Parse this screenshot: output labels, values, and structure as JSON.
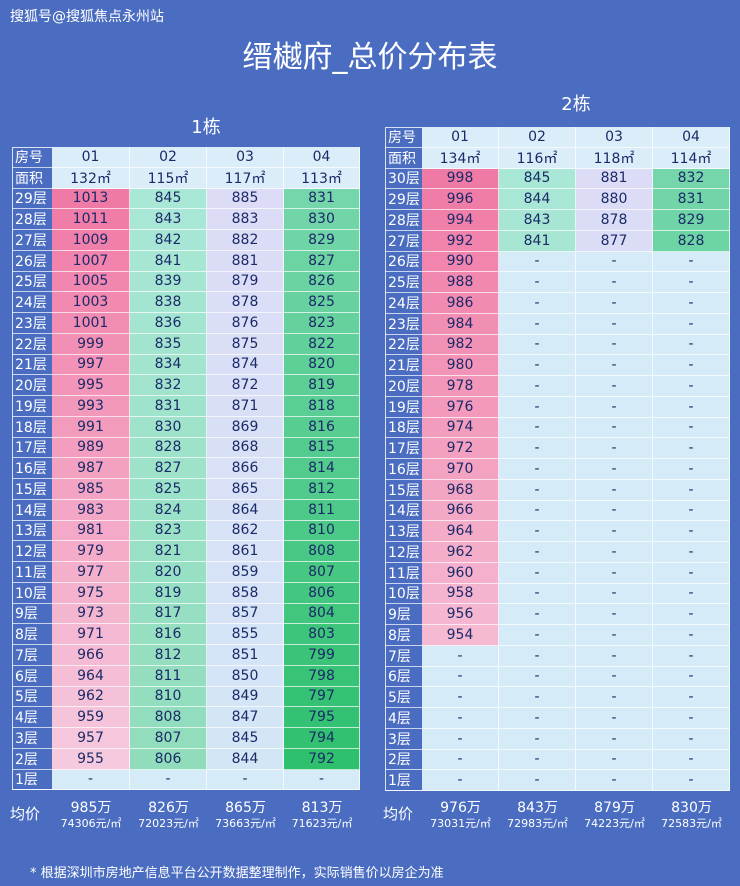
{
  "watermark": "搜狐号@搜狐焦点永州站",
  "title": "缙樾府_总价分布表",
  "footnote": "* 根据深圳市房地产信息平台公开数据整理制作，实际销售价以房企为准",
  "tables": [
    {
      "title": "1栋",
      "unit_label": "房号",
      "area_label": "面积",
      "avg_label": "均价",
      "units": [
        "01",
        "02",
        "03",
        "04"
      ],
      "areas": [
        "132㎡",
        "115㎡",
        "117㎡",
        "113㎡"
      ],
      "rows": [
        {
          "floor": "29层",
          "values": [
            1013,
            845,
            885,
            831
          ]
        },
        {
          "floor": "28层",
          "values": [
            1011,
            843,
            883,
            830
          ]
        },
        {
          "floor": "27层",
          "values": [
            1009,
            842,
            882,
            829
          ]
        },
        {
          "floor": "26层",
          "values": [
            1007,
            841,
            881,
            827
          ]
        },
        {
          "floor": "25层",
          "values": [
            1005,
            839,
            879,
            826
          ]
        },
        {
          "floor": "24层",
          "values": [
            1003,
            838,
            878,
            825
          ]
        },
        {
          "floor": "23层",
          "values": [
            1001,
            836,
            876,
            823
          ]
        },
        {
          "floor": "22层",
          "values": [
            999,
            835,
            875,
            822
          ]
        },
        {
          "floor": "21层",
          "values": [
            997,
            834,
            874,
            820
          ]
        },
        {
          "floor": "20层",
          "values": [
            995,
            832,
            872,
            819
          ]
        },
        {
          "floor": "19层",
          "values": [
            993,
            831,
            871,
            818
          ]
        },
        {
          "floor": "18层",
          "values": [
            991,
            830,
            869,
            816
          ]
        },
        {
          "floor": "17层",
          "values": [
            989,
            828,
            868,
            815
          ]
        },
        {
          "floor": "16层",
          "values": [
            987,
            827,
            866,
            814
          ]
        },
        {
          "floor": "15层",
          "values": [
            985,
            825,
            865,
            812
          ]
        },
        {
          "floor": "14层",
          "values": [
            983,
            824,
            864,
            811
          ]
        },
        {
          "floor": "13层",
          "values": [
            981,
            823,
            862,
            810
          ]
        },
        {
          "floor": "12层",
          "values": [
            979,
            821,
            861,
            808
          ]
        },
        {
          "floor": "11层",
          "values": [
            977,
            820,
            859,
            807
          ]
        },
        {
          "floor": "10层",
          "values": [
            975,
            819,
            858,
            806
          ]
        },
        {
          "floor": "9层",
          "values": [
            973,
            817,
            857,
            804
          ]
        },
        {
          "floor": "8层",
          "values": [
            971,
            816,
            855,
            803
          ]
        },
        {
          "floor": "7层",
          "values": [
            966,
            812,
            851,
            799
          ]
        },
        {
          "floor": "6层",
          "values": [
            964,
            811,
            850,
            798
          ]
        },
        {
          "floor": "5层",
          "values": [
            962,
            810,
            849,
            797
          ]
        },
        {
          "floor": "4层",
          "values": [
            959,
            808,
            847,
            795
          ]
        },
        {
          "floor": "3层",
          "values": [
            957,
            807,
            845,
            794
          ]
        },
        {
          "floor": "2层",
          "values": [
            955,
            806,
            844,
            792
          ]
        },
        {
          "floor": "1层",
          "values": [
            "-",
            "-",
            "-",
            "-"
          ]
        }
      ],
      "avg_totals": [
        "985万",
        "826万",
        "865万",
        "813万"
      ],
      "avg_unit_prices": [
        "74306元/㎡",
        "72023元/㎡",
        "73663元/㎡",
        "71623元/㎡"
      ]
    },
    {
      "title": "2栋",
      "unit_label": "房号",
      "area_label": "面积",
      "avg_label": "均价",
      "units": [
        "01",
        "02",
        "03",
        "04"
      ],
      "areas": [
        "134㎡",
        "116㎡",
        "118㎡",
        "114㎡"
      ],
      "rows": [
        {
          "floor": "30层",
          "values": [
            998,
            845,
            881,
            832
          ]
        },
        {
          "floor": "29层",
          "values": [
            996,
            844,
            880,
            831
          ]
        },
        {
          "floor": "28层",
          "values": [
            994,
            843,
            878,
            829
          ]
        },
        {
          "floor": "27层",
          "values": [
            992,
            841,
            877,
            828
          ]
        },
        {
          "floor": "26层",
          "values": [
            990,
            "-",
            "-",
            "-"
          ]
        },
        {
          "floor": "25层",
          "values": [
            988,
            "-",
            "-",
            "-"
          ]
        },
        {
          "floor": "24层",
          "values": [
            986,
            "-",
            "-",
            "-"
          ]
        },
        {
          "floor": "23层",
          "values": [
            984,
            "-",
            "-",
            "-"
          ]
        },
        {
          "floor": "22层",
          "values": [
            982,
            "-",
            "-",
            "-"
          ]
        },
        {
          "floor": "21层",
          "values": [
            980,
            "-",
            "-",
            "-"
          ]
        },
        {
          "floor": "20层",
          "values": [
            978,
            "-",
            "-",
            "-"
          ]
        },
        {
          "floor": "19层",
          "values": [
            976,
            "-",
            "-",
            "-"
          ]
        },
        {
          "floor": "18层",
          "values": [
            974,
            "-",
            "-",
            "-"
          ]
        },
        {
          "floor": "17层",
          "values": [
            972,
            "-",
            "-",
            "-"
          ]
        },
        {
          "floor": "16层",
          "values": [
            970,
            "-",
            "-",
            "-"
          ]
        },
        {
          "floor": "15层",
          "values": [
            968,
            "-",
            "-",
            "-"
          ]
        },
        {
          "floor": "14层",
          "values": [
            966,
            "-",
            "-",
            "-"
          ]
        },
        {
          "floor": "13层",
          "values": [
            964,
            "-",
            "-",
            "-"
          ]
        },
        {
          "floor": "12层",
          "values": [
            962,
            "-",
            "-",
            "-"
          ]
        },
        {
          "floor": "11层",
          "values": [
            960,
            "-",
            "-",
            "-"
          ]
        },
        {
          "floor": "10层",
          "values": [
            958,
            "-",
            "-",
            "-"
          ]
        },
        {
          "floor": "9层",
          "values": [
            956,
            "-",
            "-",
            "-"
          ]
        },
        {
          "floor": "8层",
          "values": [
            954,
            "-",
            "-",
            "-"
          ]
        },
        {
          "floor": "7层",
          "values": [
            "-",
            "-",
            "-",
            "-"
          ]
        },
        {
          "floor": "6层",
          "values": [
            "-",
            "-",
            "-",
            "-"
          ]
        },
        {
          "floor": "5层",
          "values": [
            "-",
            "-",
            "-",
            "-"
          ]
        },
        {
          "floor": "4层",
          "values": [
            "-",
            "-",
            "-",
            "-"
          ]
        },
        {
          "floor": "3层",
          "values": [
            "-",
            "-",
            "-",
            "-"
          ]
        },
        {
          "floor": "2层",
          "values": [
            "-",
            "-",
            "-",
            "-"
          ]
        },
        {
          "floor": "1层",
          "values": [
            "-",
            "-",
            "-",
            "-"
          ]
        }
      ],
      "avg_totals": [
        "976万",
        "843万",
        "879万",
        "830万"
      ],
      "avg_unit_prices": [
        "73031元/㎡",
        "72983元/㎡",
        "74223元/㎡",
        "72583元/㎡"
      ]
    }
  ]
}
